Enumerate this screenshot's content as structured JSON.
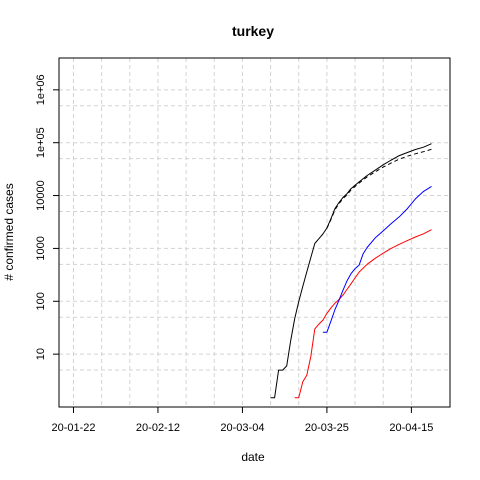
{
  "chart_data": {
    "type": "line",
    "title": "turkey",
    "xlabel": "date",
    "ylabel": "# confirmed cases",
    "y_scale": "log10",
    "ylim": [
      1,
      4000000
    ],
    "xlim": [
      "2020-01-22",
      "2020-04-21"
    ],
    "grid": true,
    "x_ticks": [
      {
        "date": "2020-01-22",
        "label": "20-01-22"
      },
      {
        "date": "2020-02-12",
        "label": "20-02-12"
      },
      {
        "date": "2020-03-04",
        "label": "20-03-04"
      },
      {
        "date": "2020-03-25",
        "label": "20-03-25"
      },
      {
        "date": "2020-04-15",
        "label": "20-04-15"
      }
    ],
    "y_ticks": [
      {
        "value": 10,
        "label": "10"
      },
      {
        "value": 100,
        "label": "100"
      },
      {
        "value": 1000,
        "label": "1000"
      },
      {
        "value": 10000,
        "label": "10000"
      },
      {
        "value": 100000,
        "label": "1e+05"
      },
      {
        "value": 1000000,
        "label": "1e+06"
      }
    ],
    "series": [
      {
        "color": "#000000",
        "dash": "solid",
        "points": [
          [
            "2020-03-11",
            1.5
          ],
          [
            "2020-03-12",
            1.5
          ],
          [
            "2020-03-13",
            5
          ],
          [
            "2020-03-14",
            5
          ],
          [
            "2020-03-15",
            6
          ],
          [
            "2020-03-16",
            18
          ],
          [
            "2020-03-17",
            47
          ],
          [
            "2020-03-18",
            98
          ],
          [
            "2020-03-19",
            191
          ],
          [
            "2020-03-20",
            359
          ],
          [
            "2020-03-21",
            670
          ],
          [
            "2020-03-22",
            1236
          ],
          [
            "2020-03-23",
            1529
          ],
          [
            "2020-03-24",
            1872
          ],
          [
            "2020-03-25",
            2433
          ],
          [
            "2020-03-26",
            3629
          ],
          [
            "2020-03-27",
            5698
          ],
          [
            "2020-03-28",
            7402
          ],
          [
            "2020-03-29",
            9217
          ],
          [
            "2020-03-30",
            10827
          ],
          [
            "2020-03-31",
            13531
          ],
          [
            "2020-04-02",
            18135
          ],
          [
            "2020-04-04",
            23934
          ],
          [
            "2020-04-06",
            30217
          ],
          [
            "2020-04-08",
            38226
          ],
          [
            "2020-04-10",
            47029
          ],
          [
            "2020-04-12",
            56956
          ],
          [
            "2020-04-14",
            65111
          ],
          [
            "2020-04-16",
            74193
          ],
          [
            "2020-04-18",
            82329
          ],
          [
            "2020-04-20",
            95591
          ]
        ]
      },
      {
        "color": "#000000",
        "dash": "dashed",
        "points": [
          [
            "2020-03-25",
            2400
          ],
          [
            "2020-03-26",
            3500
          ],
          [
            "2020-03-27",
            5400
          ],
          [
            "2020-03-28",
            7000
          ],
          [
            "2020-03-29",
            8800
          ],
          [
            "2020-03-30",
            10300
          ],
          [
            "2020-03-31",
            12800
          ],
          [
            "2020-04-02",
            17200
          ],
          [
            "2020-04-04",
            22500
          ],
          [
            "2020-04-06",
            28000
          ],
          [
            "2020-04-08",
            34500
          ],
          [
            "2020-04-10",
            41500
          ],
          [
            "2020-04-12",
            49000
          ],
          [
            "2020-04-14",
            55500
          ],
          [
            "2020-04-16",
            61500
          ],
          [
            "2020-04-18",
            67500
          ],
          [
            "2020-04-20",
            75000
          ]
        ]
      },
      {
        "color": "#ff0000",
        "dash": "solid",
        "points": [
          [
            "2020-03-17",
            1.5
          ],
          [
            "2020-03-18",
            1.5
          ],
          [
            "2020-03-19",
            3
          ],
          [
            "2020-03-20",
            4
          ],
          [
            "2020-03-21",
            9
          ],
          [
            "2020-03-22",
            30
          ],
          [
            "2020-03-23",
            37
          ],
          [
            "2020-03-24",
            44
          ],
          [
            "2020-03-25",
            59
          ],
          [
            "2020-03-26",
            75
          ],
          [
            "2020-03-27",
            92
          ],
          [
            "2020-03-28",
            108
          ],
          [
            "2020-03-29",
            131
          ],
          [
            "2020-03-30",
            168
          ],
          [
            "2020-03-31",
            214
          ],
          [
            "2020-04-01",
            277
          ],
          [
            "2020-04-02",
            356
          ],
          [
            "2020-04-04",
            501
          ],
          [
            "2020-04-06",
            649
          ],
          [
            "2020-04-08",
            812
          ],
          [
            "2020-04-10",
            1006
          ],
          [
            "2020-04-12",
            1198
          ],
          [
            "2020-04-14",
            1403
          ],
          [
            "2020-04-16",
            1643
          ],
          [
            "2020-04-18",
            1890
          ],
          [
            "2020-04-20",
            2259
          ]
        ]
      },
      {
        "color": "#0000ff",
        "dash": "solid",
        "points": [
          [
            "2020-03-24",
            26
          ],
          [
            "2020-03-25",
            26
          ],
          [
            "2020-03-26",
            42
          ],
          [
            "2020-03-27",
            70
          ],
          [
            "2020-03-28",
            105
          ],
          [
            "2020-03-29",
            162
          ],
          [
            "2020-03-30",
            243
          ],
          [
            "2020-03-31",
            333
          ],
          [
            "2020-04-01",
            415
          ],
          [
            "2020-04-02",
            484
          ],
          [
            "2020-04-03",
            786
          ],
          [
            "2020-04-04",
            1042
          ],
          [
            "2020-04-06",
            1582
          ],
          [
            "2020-04-08",
            2142
          ],
          [
            "2020-04-10",
            2965
          ],
          [
            "2020-04-12",
            3957
          ],
          [
            "2020-04-14",
            5674
          ],
          [
            "2020-04-16",
            8631
          ],
          [
            "2020-04-18",
            11976
          ],
          [
            "2020-04-20",
            14918
          ]
        ]
      }
    ]
  }
}
